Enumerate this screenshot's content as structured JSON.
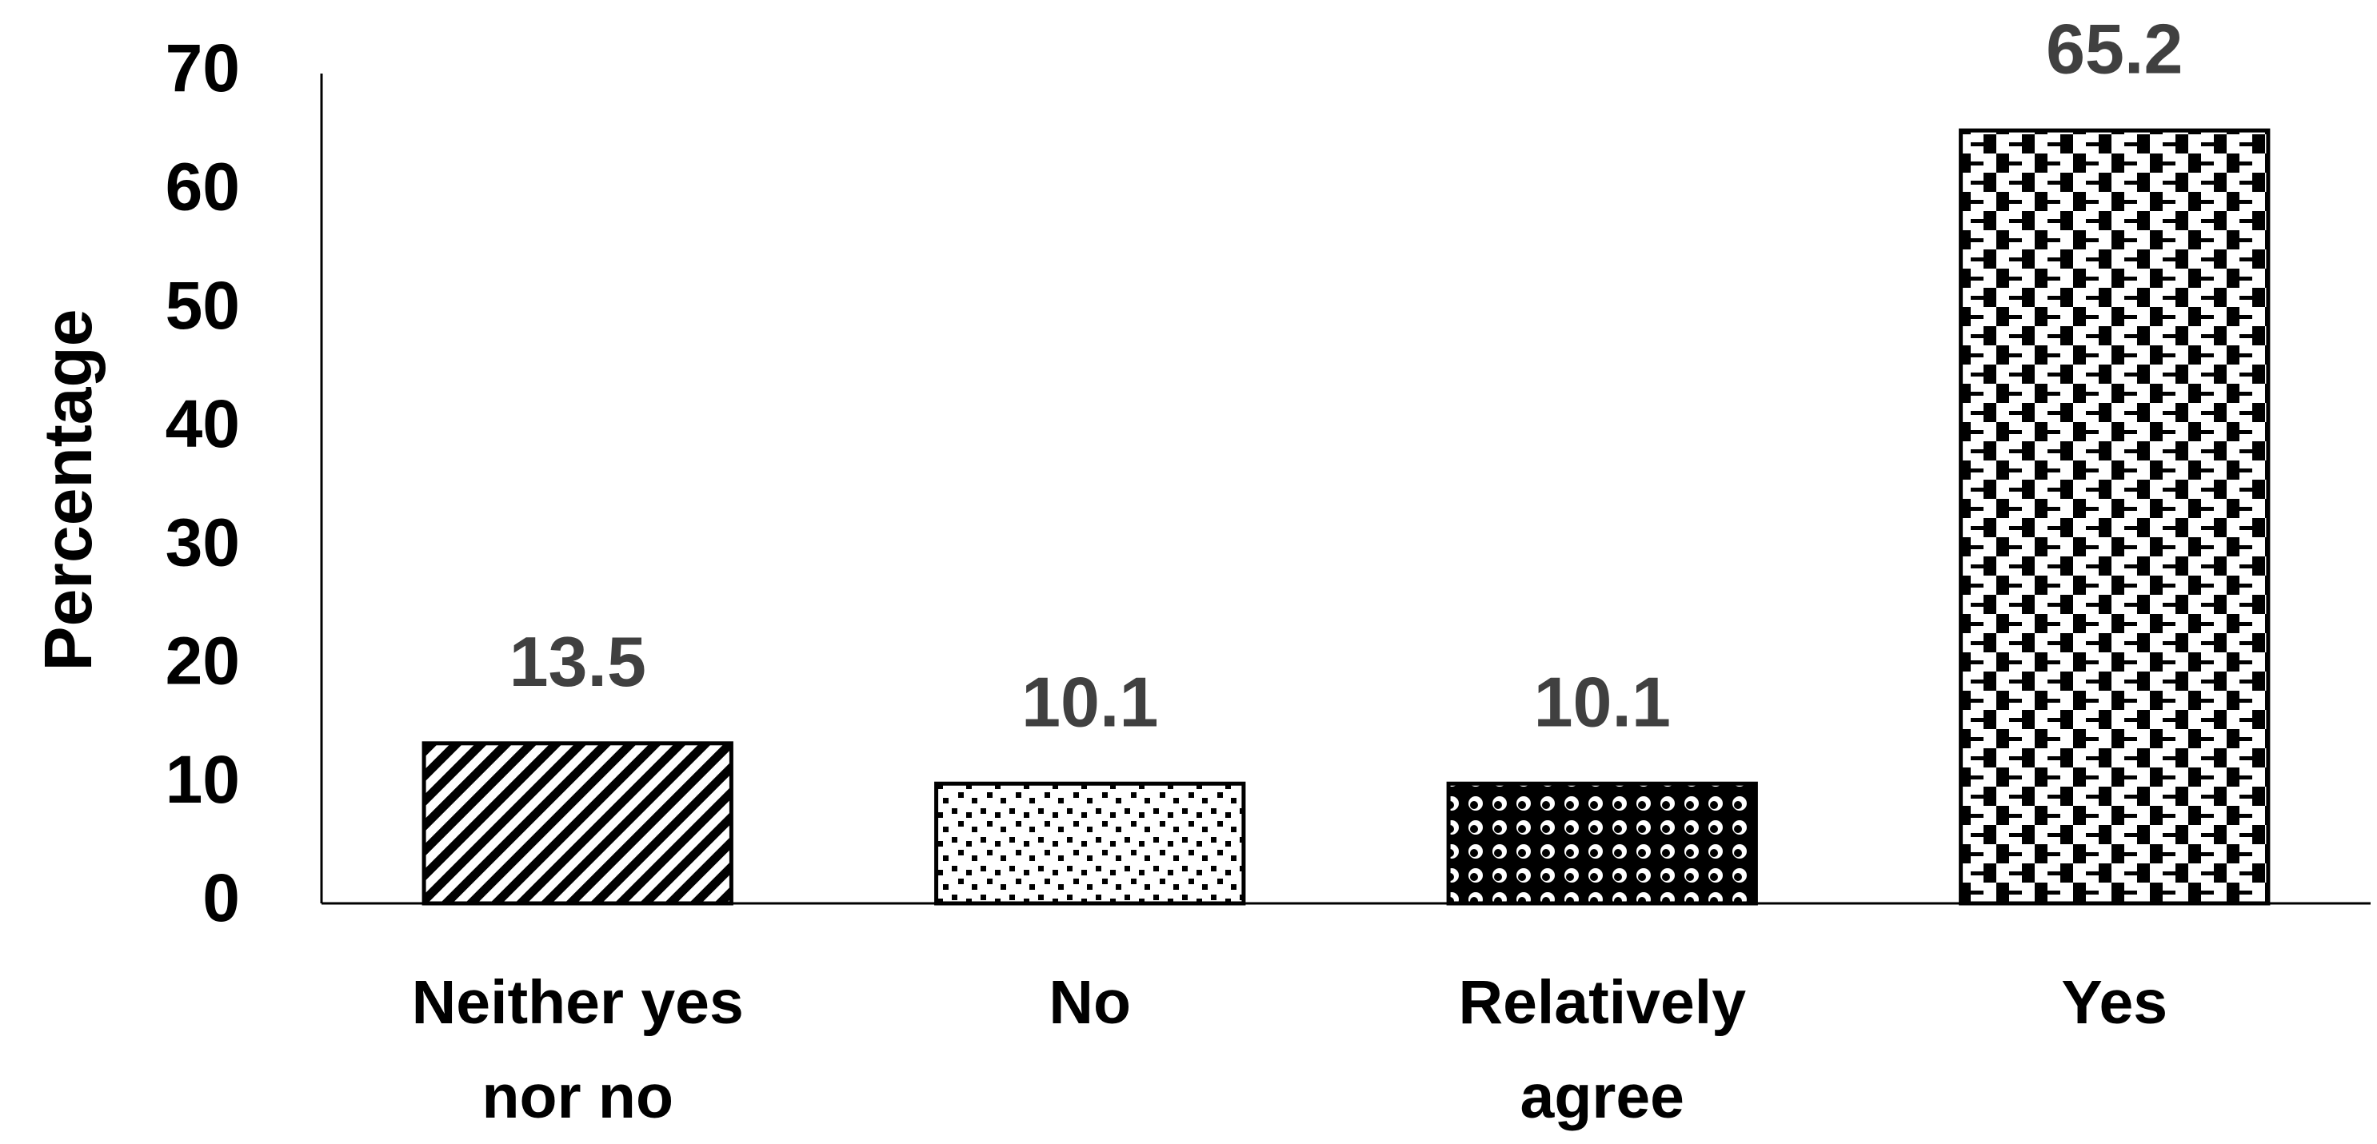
{
  "chart_data": {
    "type": "bar",
    "y_label": "Percentage",
    "categories": [
      "Neither yes nor no",
      "No",
      "Relatively agree",
      "Yes"
    ],
    "values": [
      13.5,
      10.1,
      10.1,
      65.2
    ],
    "patterns": [
      "diagonal",
      "speckle",
      "circles",
      "checker"
    ],
    "color": "#000000",
    "ylim": [
      0,
      70
    ],
    "yticks": [
      0,
      10,
      20,
      30,
      40,
      50,
      60,
      70
    ],
    "grid": false
  }
}
